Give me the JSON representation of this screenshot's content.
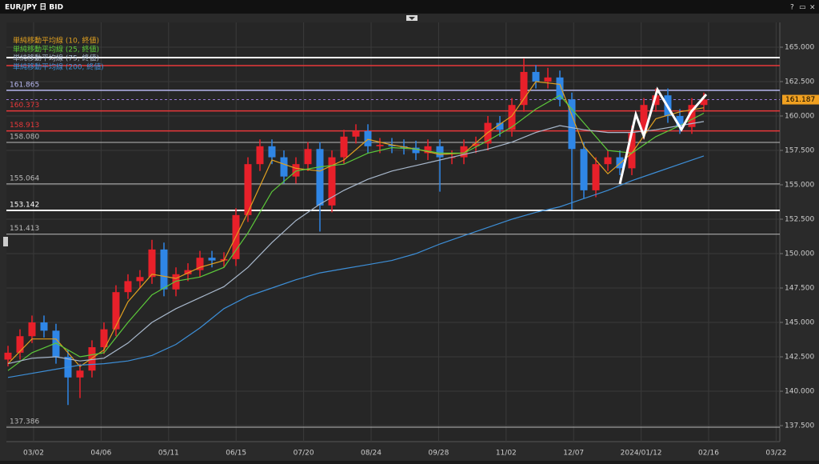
{
  "window": {
    "title": "EUR/JPY 日 BID",
    "help": "?",
    "restore": "▭",
    "close": "×"
  },
  "chart_data": {
    "type": "candlestick",
    "x_tick_labels": [
      "03/02",
      "04/06",
      "05/11",
      "06/15",
      "07/20",
      "08/24",
      "09/28",
      "11/02",
      "12/07",
      "2024/01/12",
      "02/16",
      "03/22"
    ],
    "open": [
      142.3,
      142.8,
      144.0,
      145.0,
      144.4,
      142.5,
      141.0,
      141.5,
      143.2,
      144.5,
      147.2,
      148.0,
      148.3,
      150.3,
      147.4,
      148.5,
      148.8,
      149.7,
      149.5,
      149.6,
      152.8,
      156.5,
      157.8,
      157.0,
      155.6,
      156.5,
      157.6,
      153.5,
      157.0,
      158.5,
      158.9,
      157.8,
      157.9,
      157.8,
      157.7,
      157.3,
      157.8,
      157.0,
      157.0,
      157.8,
      158.0,
      159.5,
      159.0,
      160.8,
      163.2,
      162.5,
      162.8,
      161.2,
      157.6,
      154.6,
      156.5,
      157.0,
      156.2,
      158.8,
      160.8,
      161.5,
      160.0,
      159.2,
      160.8
    ],
    "high": [
      143.3,
      144.5,
      145.5,
      145.5,
      144.9,
      143.0,
      142.0,
      143.7,
      145.0,
      147.7,
      148.5,
      148.8,
      151.0,
      150.8,
      149.0,
      149.3,
      150.2,
      150.2,
      150.1,
      153.3,
      157.0,
      158.3,
      158.3,
      157.5,
      157.0,
      158.1,
      158.1,
      157.5,
      159.0,
      159.4,
      159.4,
      158.4,
      158.4,
      158.3,
      158.2,
      158.3,
      158.3,
      157.5,
      158.3,
      158.5,
      160.0,
      160.0,
      161.3,
      164.2,
      163.7,
      163.5,
      163.3,
      161.7,
      158.1,
      157.0,
      157.5,
      157.5,
      159.3,
      161.3,
      162.0,
      162.0,
      160.5,
      161.3,
      161.7
    ],
    "low": [
      141.8,
      142.3,
      143.5,
      143.9,
      142.0,
      139.0,
      139.5,
      141.0,
      142.7,
      144.0,
      146.7,
      147.5,
      147.8,
      146.9,
      146.9,
      148.0,
      148.3,
      149.0,
      149.0,
      149.1,
      152.3,
      156.0,
      156.5,
      155.1,
      155.1,
      156.0,
      151.6,
      153.0,
      156.5,
      158.0,
      157.3,
      157.3,
      157.3,
      157.2,
      156.8,
      156.8,
      154.5,
      156.5,
      156.5,
      157.3,
      157.5,
      158.5,
      158.5,
      160.3,
      162.0,
      162.0,
      160.7,
      153.2,
      154.0,
      154.1,
      156.0,
      155.7,
      155.7,
      158.3,
      160.3,
      159.5,
      158.7,
      158.7,
      160.3
    ],
    "close": [
      142.8,
      144.0,
      145.0,
      144.4,
      142.5,
      141.0,
      141.5,
      143.2,
      144.5,
      147.2,
      148.0,
      148.3,
      150.3,
      147.4,
      148.5,
      148.8,
      149.7,
      149.5,
      149.6,
      152.8,
      156.5,
      157.8,
      157.0,
      155.6,
      156.5,
      157.6,
      153.5,
      157.0,
      158.5,
      158.9,
      157.8,
      157.9,
      157.8,
      157.7,
      157.3,
      157.8,
      157.0,
      157.0,
      157.8,
      158.0,
      159.5,
      159.0,
      160.8,
      163.2,
      162.5,
      162.8,
      161.2,
      157.6,
      154.6,
      156.5,
      157.0,
      156.2,
      158.8,
      160.8,
      161.5,
      160.0,
      159.2,
      160.8,
      161.2
    ],
    "up_color": "#e8202a",
    "down_color": "#2f86e6",
    "series": [
      {
        "name": "単純移動平均線 (10, 終値)",
        "color": "#e0a020",
        "values": [
          142.0,
          143.8,
          143.8,
          141.8,
          143.0,
          146.5,
          148.5,
          148.2,
          149.0,
          149.5,
          153.0,
          156.8,
          156.2,
          156.0,
          156.8,
          158.3,
          157.9,
          157.6,
          157.2,
          157.3,
          158.8,
          160.0,
          162.5,
          162.3,
          157.8,
          155.8,
          157.3,
          159.8,
          160.3,
          160.6
        ]
      },
      {
        "name": "単純移動平均線 (25, 終値)",
        "color": "#5cc93a",
        "values": [
          141.5,
          142.8,
          143.5,
          142.5,
          142.8,
          145.0,
          147.0,
          148.0,
          148.3,
          149.0,
          151.5,
          154.5,
          156.0,
          156.3,
          156.5,
          157.3,
          157.7,
          157.6,
          157.3,
          157.3,
          158.2,
          159.2,
          160.5,
          161.5,
          159.5,
          157.5,
          157.3,
          158.5,
          159.3,
          160.2
        ]
      },
      {
        "name": "単純移動平均線 (75, 終値)",
        "color": "#a8b8cc",
        "values": [
          142.0,
          142.4,
          142.5,
          142.2,
          142.4,
          143.5,
          145.0,
          146.0,
          146.8,
          147.6,
          149.0,
          150.8,
          152.4,
          153.6,
          154.6,
          155.4,
          156.0,
          156.4,
          156.8,
          157.2,
          157.6,
          158.1,
          158.8,
          159.3,
          159.0,
          158.8,
          158.8,
          159.0,
          159.3,
          159.6
        ]
      },
      {
        "name": "単純移動平均線 (200, 終値)",
        "color": "#3d8fd8",
        "values": [
          141.0,
          141.3,
          141.6,
          141.9,
          142.0,
          142.2,
          142.6,
          143.4,
          144.6,
          146.0,
          146.9,
          147.5,
          148.1,
          148.6,
          148.9,
          149.2,
          149.5,
          150.0,
          150.7,
          151.3,
          151.9,
          152.5,
          153.0,
          153.4,
          154.0,
          154.6,
          155.3,
          155.9,
          156.5,
          157.1
        ]
      }
    ],
    "levels": [
      {
        "value": 164.24,
        "color": "#ffffff",
        "width": 2,
        "show_label": false
      },
      {
        "value": 163.66,
        "color": "#e8383a",
        "width": 1.5,
        "show_label": false
      },
      {
        "value": 161.865,
        "color": "#b8b8f0",
        "width": 1.5,
        "show_label": true
      },
      {
        "value": 160.373,
        "color": "#e8383a",
        "width": 1.5,
        "show_label": true
      },
      {
        "value": 158.913,
        "color": "#e8383a",
        "width": 1.5,
        "show_label": true
      },
      {
        "value": 158.08,
        "label": "158.080",
        "color": "#bbbbbb",
        "width": 1,
        "show_label": true
      },
      {
        "value": 155.064,
        "color": "#bbbbbb",
        "width": 1,
        "show_label": true
      },
      {
        "value": 153.142,
        "color": "#ffffff",
        "width": 2,
        "show_label": true
      },
      {
        "value": 151.413,
        "color": "#bbbbbb",
        "width": 1,
        "show_label": true
      },
      {
        "value": 137.386,
        "color": "#bbbbbb",
        "width": 1,
        "show_label": true
      }
    ],
    "last_price": {
      "value": 161.187,
      "color": "#f0a020"
    },
    "ylim": [
      136.34,
      166.8
    ],
    "yticks": [
      {
        "value": 165,
        "label": "165.000"
      },
      {
        "value": 162.5,
        "label": "162.500"
      },
      {
        "value": 160,
        "label": "160.000"
      },
      {
        "value": 157.5,
        "label": "157.500"
      },
      {
        "value": 155,
        "label": "155.000"
      },
      {
        "value": 152.5,
        "label": "152.500"
      },
      {
        "value": 150,
        "label": "150.000"
      },
      {
        "value": 147.5,
        "label": "147.500"
      },
      {
        "value": 145,
        "label": "145.000"
      },
      {
        "value": 142.5,
        "label": "142.500"
      },
      {
        "value": 140,
        "label": "140.000"
      },
      {
        "value": 137.5,
        "label": "137.500"
      }
    ],
    "grid": true
  }
}
